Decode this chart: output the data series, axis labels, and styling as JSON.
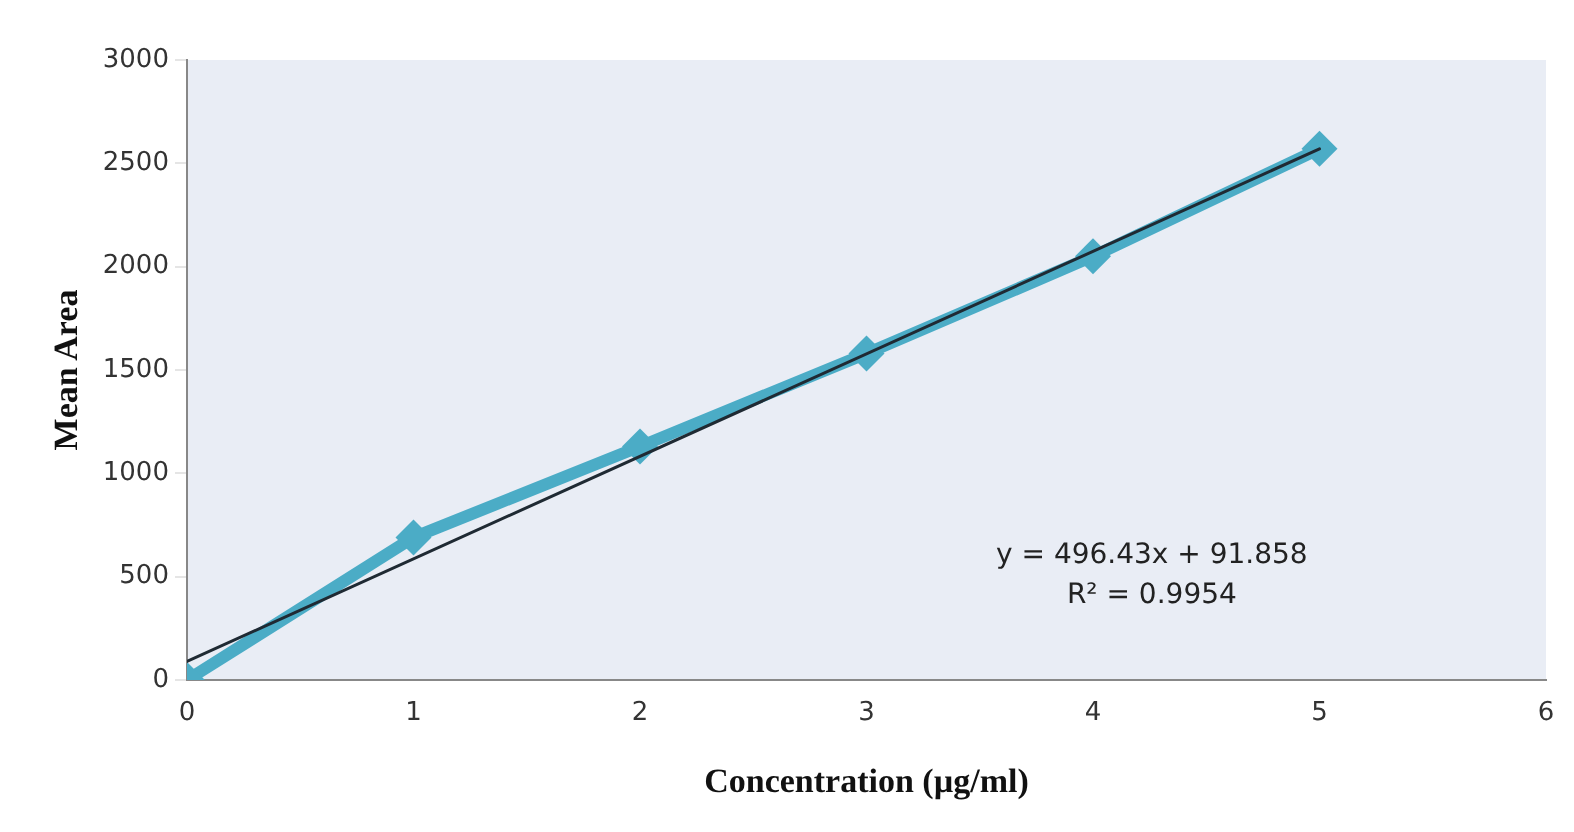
{
  "chart_data": {
    "type": "line",
    "xlabel": "Concentration (µg/ml)",
    "ylabel": "Mean Area",
    "xlim": [
      0,
      6
    ],
    "xticks": [
      0,
      1,
      2,
      3,
      4,
      5,
      6
    ],
    "ylim": [
      0,
      3000
    ],
    "yticks": [
      0,
      500,
      1000,
      1500,
      2000,
      2500,
      3000
    ],
    "grid": false,
    "legend": false,
    "marker": "diamond",
    "line_style": "solid",
    "series": [
      {
        "color": "#4bacc6",
        "x": [
          0,
          1,
          2,
          3,
          4,
          5
        ],
        "values": [
          0,
          690,
          1130,
          1580,
          2050,
          2570
        ]
      },
      {
        "type": "line",
        "color": "#1f2a33",
        "marker": "none",
        "x": [
          0,
          5
        ],
        "values": [
          90,
          2570
        ]
      }
    ],
    "annotations": [
      "y = 496.43x + 91.858",
      "R² = 0.9954"
    ]
  }
}
